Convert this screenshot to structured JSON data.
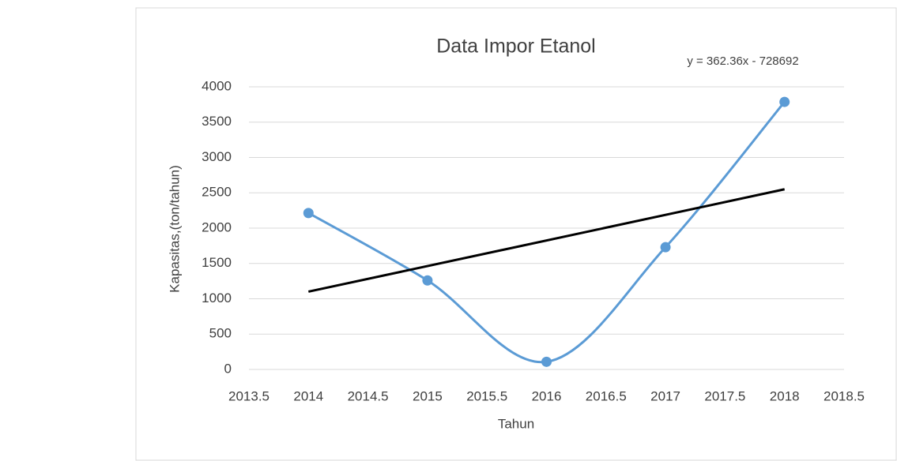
{
  "chart_data": {
    "type": "scatter",
    "title": "Data Impor Etanol",
    "x_label": "Tahun",
    "y_label": "Kapasitas,(ton/tahun)",
    "x": [
      2014,
      2015,
      2016,
      2017,
      2018
    ],
    "series": [
      {
        "color": "#5b9bd5",
        "values": [
          2214,
          1260,
          108,
          1730,
          3787
        ]
      }
    ],
    "trendline": {
      "equation": "y = 362.36x - 728692",
      "color": "#000000",
      "x": [
        2014,
        2018
      ],
      "values": [
        1101,
        2550
      ]
    },
    "smooth": true,
    "xlim": [
      2013.5,
      2018.5
    ],
    "xticks": [
      2013.5,
      2014,
      2014.5,
      2015,
      2015.5,
      2016,
      2016.5,
      2017,
      2017.5,
      2018,
      2018.5
    ],
    "ylim": [
      0,
      4000
    ],
    "yticks": [
      0,
      500,
      1000,
      1500,
      2000,
      2500,
      3000,
      3500,
      4000
    ],
    "grid": true
  }
}
